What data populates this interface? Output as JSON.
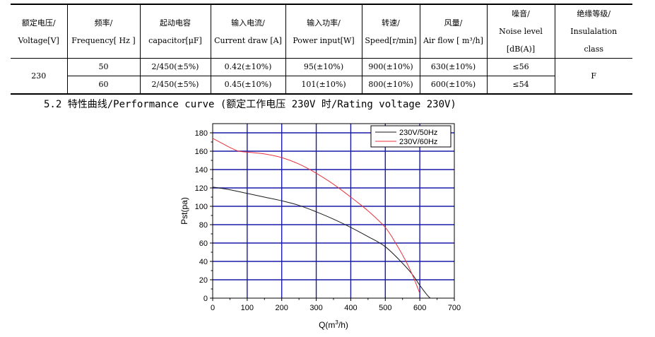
{
  "table": {
    "headers": [
      [
        "额定电压/",
        "Voltage[V]"
      ],
      [
        "频率/",
        "Frequency[ Hz ]"
      ],
      [
        "起动电容",
        "capacitor[μF]"
      ],
      [
        "输入电流/",
        "Current draw [A]"
      ],
      [
        "输入功率/",
        "Power input[W]"
      ],
      [
        "转速/",
        "Speed[r/min]"
      ],
      [
        "风量/",
        "Air flow [ m³/h]"
      ],
      [
        "噪音/",
        "Noise level",
        "[dB(A)]"
      ],
      [
        "绝缘等级/",
        "Insulalation",
        "class"
      ]
    ],
    "voltage": "230",
    "insulation": "F",
    "rows": [
      {
        "frequency": "50",
        "capacitor": "2/450(±5%)",
        "current": "0.42(±10%)",
        "power": "95(±10%)",
        "speed": "900(±10%)",
        "airflow": "630(±10%)",
        "noise": "≤56"
      },
      {
        "frequency": "60",
        "capacitor": "2/450(±5%)",
        "current": "0.45(±10%)",
        "power": "101(±10%)",
        "speed": "800(±10%)",
        "airflow": "600(±10%)",
        "noise": "≤54"
      }
    ]
  },
  "section": {
    "title": "5.2 特性曲线/Performance curve (额定工作电压 230V 时/Rating voltage 230V)"
  },
  "chart_data": {
    "type": "line",
    "xlabel": "Q(m³/h)",
    "ylabel": "Pst(pa)",
    "xlim": [
      0,
      700
    ],
    "ylim": [
      0,
      190
    ],
    "xticks": [
      0,
      100,
      200,
      300,
      400,
      500,
      600,
      700
    ],
    "yticks": [
      0,
      20,
      40,
      60,
      80,
      100,
      120,
      140,
      160,
      180
    ],
    "grid": true,
    "legend_position": "top-right",
    "colors": {
      "grid": "#1a1aa8",
      "series_50": "#1a1a1a",
      "series_60": "#e8323c"
    },
    "series": [
      {
        "name": "230V/50Hz",
        "x": [
          0,
          50,
          100,
          150,
          200,
          250,
          300,
          350,
          400,
          450,
          500,
          550,
          580,
          600,
          620,
          630
        ],
        "y": [
          121,
          118,
          114,
          110,
          106,
          101,
          94,
          86,
          77,
          67,
          56,
          38,
          25,
          14,
          4,
          0
        ]
      },
      {
        "name": "230V/60Hz",
        "x": [
          0,
          25,
          50,
          75,
          100,
          150,
          200,
          250,
          300,
          350,
          400,
          450,
          500,
          530,
          560,
          580,
          595,
          600
        ],
        "y": [
          174,
          169,
          164,
          160,
          159,
          157,
          153,
          146,
          136,
          124,
          110,
          95,
          77,
          60,
          40,
          24,
          10,
          5
        ]
      }
    ]
  }
}
